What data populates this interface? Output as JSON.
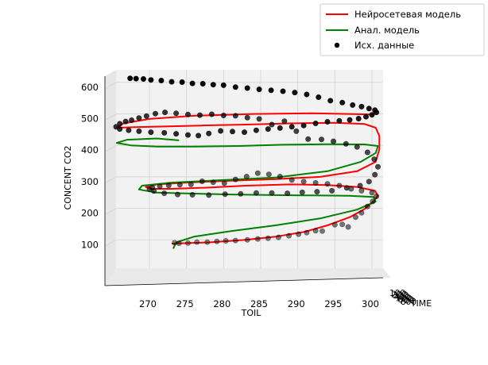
{
  "chart_data": {
    "type": "scatter",
    "projection": "3d",
    "title": "",
    "xlabel": "TOIL",
    "ylabel": "CONCENT CO2",
    "zlabel": "TIME",
    "x_ticks": [
      "270",
      "275",
      "280",
      "285",
      "290",
      "295",
      "300"
    ],
    "y_ticks": [
      "100",
      "200",
      "300",
      "400",
      "500",
      "600"
    ],
    "time_ticks": [
      "100",
      "200",
      "300",
      "400",
      "500",
      "600",
      "700",
      "800"
    ],
    "xlim": [
      265.5,
      301.5
    ],
    "ylim": [
      10,
      640
    ],
    "grid": true,
    "legend": {
      "position": "top-right",
      "entries": [
        {
          "label": "Нейросетевая модель",
          "color": "#ff0000",
          "marker": "line"
        },
        {
          "label": "Анал. модель",
          "color": "#008000",
          "marker": "line"
        },
        {
          "label": "Исх. данные",
          "color": "#000000",
          "marker": "dot"
        }
      ]
    },
    "series": [
      {
        "name": "Нейросетевая модель",
        "kind": "line",
        "color": "#ff0000",
        "points": [
          [
            273.0,
            88
          ],
          [
            278,
            92
          ],
          [
            283,
            100
          ],
          [
            287,
            110
          ],
          [
            291,
            126
          ],
          [
            294,
            146
          ],
          [
            297,
            172
          ],
          [
            299,
            198
          ],
          [
            300.2,
            222
          ],
          [
            300.8,
            240
          ],
          [
            300.4,
            256
          ],
          [
            298,
            268
          ],
          [
            294,
            274
          ],
          [
            289,
            276
          ],
          [
            283,
            272
          ],
          [
            278,
            266
          ],
          [
            273,
            262
          ],
          [
            270.2,
            262
          ],
          [
            269.5,
            268
          ],
          [
            271,
            276
          ],
          [
            275,
            282
          ],
          [
            281,
            288
          ],
          [
            287,
            293
          ],
          [
            293,
            300
          ],
          [
            298,
            318
          ],
          [
            300.5,
            348
          ],
          [
            301,
            388
          ],
          [
            301,
            430
          ],
          [
            300.5,
            456
          ],
          [
            299,
            468
          ],
          [
            295,
            472
          ],
          [
            289,
            470
          ],
          [
            283,
            466
          ],
          [
            277,
            463
          ],
          [
            272,
            460
          ],
          [
            268,
            458
          ],
          [
            265.6,
            456
          ],
          [
            266.5,
            470
          ],
          [
            270,
            484
          ],
          [
            276,
            494
          ],
          [
            284,
            500
          ],
          [
            292,
            502
          ],
          [
            300.2,
            498
          ]
        ]
      },
      {
        "name": "Анал. модель",
        "kind": "line",
        "color": "#008000",
        "points": [
          [
            273.2,
            72
          ],
          [
            273.6,
            92
          ],
          [
            276,
            110
          ],
          [
            281,
            128
          ],
          [
            287,
            146
          ],
          [
            293,
            168
          ],
          [
            298,
            196
          ],
          [
            300.5,
            222
          ],
          [
            300.2,
            236
          ],
          [
            297,
            240
          ],
          [
            292,
            241
          ],
          [
            287,
            242
          ],
          [
            281,
            244
          ],
          [
            276,
            247
          ],
          [
            271,
            250
          ],
          [
            268.6,
            260
          ],
          [
            269,
            272
          ],
          [
            273,
            282
          ],
          [
            280,
            290
          ],
          [
            287,
            298
          ],
          [
            294,
            318
          ],
          [
            298.5,
            348
          ],
          [
            300.5,
            376
          ],
          [
            300.8,
            398
          ],
          [
            299,
            403
          ],
          [
            294,
            404
          ],
          [
            288,
            402
          ],
          [
            282,
            398
          ],
          [
            276,
            396
          ],
          [
            271,
            396
          ],
          [
            267.5,
            400
          ],
          [
            265.6,
            408
          ],
          [
            267,
            418
          ],
          [
            271,
            422
          ],
          [
            274,
            416
          ]
        ]
      },
      {
        "name": "Исх. данные",
        "kind": "points",
        "color": "#000000",
        "points": [
          [
            273.4,
            91
          ],
          [
            274.0,
            89
          ],
          [
            275.2,
            90
          ],
          [
            276.4,
            93
          ],
          [
            277.8,
            93
          ],
          [
            279.1,
            95
          ],
          [
            280.3,
            97
          ],
          [
            281.6,
            98
          ],
          [
            283.2,
            100
          ],
          [
            284.6,
            103
          ],
          [
            286.0,
            105
          ],
          [
            287.4,
            108
          ],
          [
            288.8,
            113
          ],
          [
            290.1,
            118
          ],
          [
            291.2,
            123
          ],
          [
            292.4,
            129
          ],
          [
            293.3,
            128
          ],
          [
            295.0,
            148
          ],
          [
            296.0,
            149
          ],
          [
            296.8,
            141
          ],
          [
            297.8,
            172
          ],
          [
            298.6,
            186
          ],
          [
            299.4,
            206
          ],
          [
            300.1,
            222
          ],
          [
            300.6,
            238
          ],
          [
            300.0,
            250
          ],
          [
            298.6,
            256
          ],
          [
            297.2,
            262
          ],
          [
            295.6,
            272
          ],
          [
            294.0,
            278
          ],
          [
            292.4,
            281
          ],
          [
            290.8,
            285
          ],
          [
            289.2,
            290
          ],
          [
            287.6,
            301
          ],
          [
            286.1,
            308
          ],
          [
            284.6,
            312
          ],
          [
            283.1,
            301
          ],
          [
            281.6,
            292
          ],
          [
            280.1,
            280
          ],
          [
            278.6,
            283
          ],
          [
            277.1,
            286
          ],
          [
            275.6,
            276
          ],
          [
            274.1,
            275
          ],
          [
            272.6,
            273
          ],
          [
            271.4,
            270
          ],
          [
            270.4,
            266
          ],
          [
            270.0,
            261
          ],
          [
            270.6,
            255
          ],
          [
            272.0,
            248
          ],
          [
            273.8,
            244
          ],
          [
            275.8,
            243
          ],
          [
            278.0,
            242
          ],
          [
            280.2,
            245
          ],
          [
            282.3,
            246
          ],
          [
            284.4,
            249
          ],
          [
            286.5,
            249
          ],
          [
            288.6,
            248
          ],
          [
            290.6,
            251
          ],
          [
            292.6,
            253
          ],
          [
            294.6,
            256
          ],
          [
            296.6,
            265
          ],
          [
            298.4,
            272
          ],
          [
            299.6,
            285
          ],
          [
            300.4,
            307
          ],
          [
            300.8,
            332
          ],
          [
            300.3,
            356
          ],
          [
            299.4,
            378
          ],
          [
            298.0,
            395
          ],
          [
            296.5,
            405
          ],
          [
            294.8,
            413
          ],
          [
            293.2,
            419
          ],
          [
            291.4,
            420
          ],
          [
            289.8,
            445
          ],
          [
            288.2,
            477
          ],
          [
            286.5,
            466
          ],
          [
            284.8,
            484
          ],
          [
            283.2,
            488
          ],
          [
            281.6,
            494
          ],
          [
            280.0,
            495
          ],
          [
            278.4,
            499
          ],
          [
            276.8,
            496
          ],
          [
            275.2,
            498
          ],
          [
            273.6,
            502
          ],
          [
            272.1,
            505
          ],
          [
            270.8,
            501
          ],
          [
            269.6,
            493
          ],
          [
            268.6,
            487
          ],
          [
            267.6,
            480
          ],
          [
            266.8,
            476
          ],
          [
            266.0,
            469
          ],
          [
            265.5,
            459
          ],
          [
            266.0,
            452
          ],
          [
            267.2,
            448
          ],
          [
            268.6,
            445
          ],
          [
            270.2,
            442
          ],
          [
            272.0,
            440
          ],
          [
            273.6,
            437
          ],
          [
            275.2,
            433
          ],
          [
            276.6,
            431
          ],
          [
            278.0,
            438
          ],
          [
            279.6,
            446
          ],
          [
            281.2,
            444
          ],
          [
            282.8,
            442
          ],
          [
            284.4,
            448
          ],
          [
            286.0,
            452
          ],
          [
            287.6,
            455
          ],
          [
            289.2,
            459
          ],
          [
            290.8,
            463
          ],
          [
            292.4,
            470
          ],
          [
            294.0,
            475
          ],
          [
            295.6,
            478
          ],
          [
            297.0,
            481
          ],
          [
            298.2,
            485
          ],
          [
            299.2,
            491
          ],
          [
            300.0,
            497
          ],
          [
            300.6,
            505
          ],
          [
            300.4,
            512
          ],
          [
            299.6,
            517
          ],
          [
            298.6,
            523
          ],
          [
            297.4,
            528
          ],
          [
            296.0,
            536
          ],
          [
            294.4,
            542
          ],
          [
            292.8,
            553
          ],
          [
            291.2,
            562
          ],
          [
            289.6,
            568
          ],
          [
            288.0,
            572
          ],
          [
            286.4,
            575
          ],
          [
            284.8,
            578
          ],
          [
            283.2,
            582
          ],
          [
            281.6,
            585
          ],
          [
            280.0,
            591
          ],
          [
            278.6,
            593
          ],
          [
            277.2,
            596
          ],
          [
            275.8,
            597
          ],
          [
            274.4,
            601
          ],
          [
            273.0,
            602
          ],
          [
            271.6,
            606
          ],
          [
            270.2,
            608
          ],
          [
            269.2,
            611
          ],
          [
            268.2,
            612
          ],
          [
            267.4,
            613
          ]
        ]
      }
    ]
  }
}
